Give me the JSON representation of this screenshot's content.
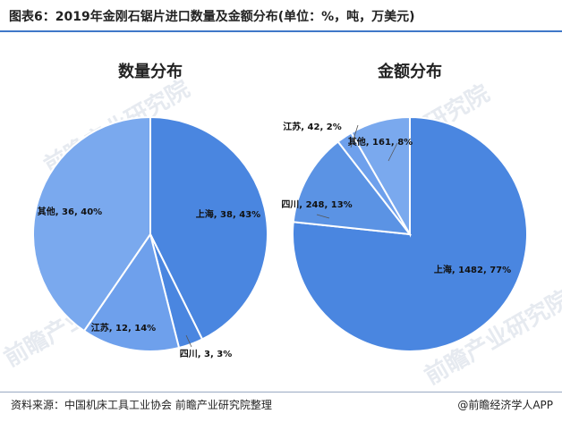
{
  "figure": {
    "title": "图表6：2019年金刚石锯片进口数量及金额分布(单位：%，吨，万美元)",
    "source": "资料来源：中国机床工具工业协会 前瞻产业研究院整理",
    "brand": "@前瞻经济学人APP",
    "watermark": "前瞻产业研究院"
  },
  "chart_data": [
    {
      "type": "pie",
      "title": "数量分布",
      "slices": [
        {
          "name": "上海",
          "value": 38,
          "percent": 43,
          "label": "上海, 38, 43%",
          "color": "#4a86e0"
        },
        {
          "name": "四川",
          "value": 3,
          "percent": 3,
          "label": "四川, 3, 3%",
          "color": "#4a86e0"
        },
        {
          "name": "江苏",
          "value": 12,
          "percent": 14,
          "label": "江苏, 12, 14%",
          "color": "#6ea0ec"
        },
        {
          "name": "其他",
          "value": 36,
          "percent": 40,
          "label": "其他, 36, 40%",
          "color": "#7aa9ee"
        }
      ]
    },
    {
      "type": "pie",
      "title": "金额分布",
      "slices": [
        {
          "name": "上海",
          "value": 1482,
          "percent": 77,
          "label": "上海, 1482, 77%",
          "color": "#4a86e0"
        },
        {
          "name": "四川",
          "value": 248,
          "percent": 13,
          "label": "四川, 248, 13%",
          "color": "#5b93e4"
        },
        {
          "name": "江苏",
          "value": 42,
          "percent": 2,
          "label": "江苏, 42, 2%",
          "color": "#6ea0ec"
        },
        {
          "name": "其他",
          "value": 161,
          "percent": 8,
          "label": "其他, 161, 8%",
          "color": "#7aa9ee"
        }
      ]
    }
  ]
}
